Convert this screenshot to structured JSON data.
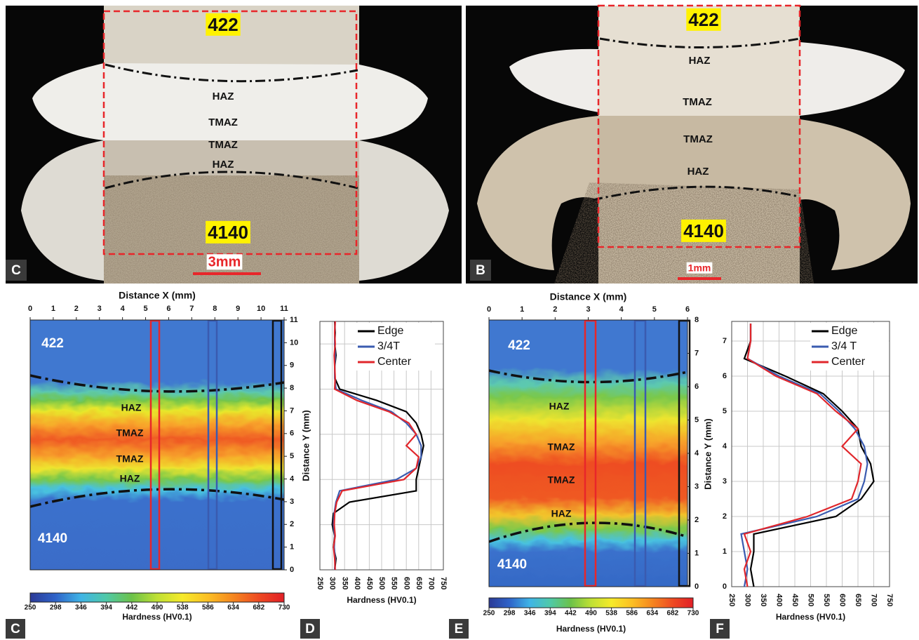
{
  "photos": [
    {
      "letter": "C",
      "labels": [
        "422",
        "HAZ",
        "TMAZ",
        "TMAZ",
        "HAZ",
        "4140"
      ],
      "scale_bar": "3mm"
    },
    {
      "letter": "B",
      "labels": [
        "422",
        "HAZ",
        "TMAZ",
        "TMAZ",
        "HAZ",
        "4140"
      ],
      "scale_bar": "1mm"
    }
  ],
  "chart_data": [
    {
      "type": "heatmap",
      "panel": "C",
      "x_label": "Distance X (mm)",
      "xlim": [
        0,
        11
      ],
      "xticks": [
        0,
        1,
        2,
        3,
        4,
        5,
        6,
        7,
        8,
        9,
        10,
        11
      ],
      "ylim": [
        0,
        11
      ],
      "yticks": [
        0,
        1,
        2,
        3,
        4,
        5,
        6,
        7,
        8,
        9,
        10,
        11
      ],
      "zone_labels": [
        "422",
        "HAZ",
        "TMAZ",
        "TMAZ",
        "HAZ",
        "4140"
      ],
      "colorbar": {
        "label": "Hardness (HV0.1)",
        "lim": [
          250,
          730
        ],
        "ticks": [
          250,
          298,
          346,
          394,
          442,
          490,
          538,
          586,
          634,
          682,
          730
        ]
      }
    },
    {
      "type": "line",
      "panel": "D",
      "x_label": "Hardness (HV0.1)",
      "y_label": "Distance Y (mm)",
      "xlim": [
        250,
        750
      ],
      "xticks": [
        250,
        300,
        350,
        400,
        450,
        500,
        550,
        600,
        650,
        700,
        750
      ],
      "ylim": [
        0,
        11
      ],
      "ygrid": [
        0,
        2,
        4,
        6,
        8,
        10
      ],
      "legend": "upper right",
      "y": [
        0,
        0.5,
        1,
        1.5,
        2,
        2.5,
        3,
        3.5,
        4,
        4.5,
        5,
        5.5,
        6,
        6.5,
        7,
        7.5,
        8,
        8.5,
        9,
        9.5,
        10,
        10.5,
        11
      ],
      "series": [
        {
          "name": "Edge",
          "color": "#000000",
          "values": [
            310,
            315,
            305,
            310,
            300,
            305,
            370,
            640,
            640,
            650,
            660,
            670,
            660,
            640,
            600,
            480,
            330,
            310,
            310,
            315,
            310,
            312,
            310
          ]
        },
        {
          "name": "3/4T",
          "color": "#3a5bb0",
          "values": [
            310,
            312,
            308,
            310,
            305,
            308,
            315,
            330,
            560,
            640,
            660,
            660,
            640,
            600,
            540,
            420,
            315,
            310,
            310,
            312,
            310,
            310,
            312
          ]
        },
        {
          "name": "Center",
          "color": "#e0262b",
          "values": [
            312,
            310,
            305,
            312,
            308,
            310,
            318,
            340,
            590,
            640,
            650,
            600,
            640,
            610,
            530,
            400,
            310,
            312,
            310,
            308,
            312,
            310,
            312
          ]
        }
      ]
    },
    {
      "type": "heatmap",
      "panel": "E",
      "x_label": "Distance X (mm)",
      "xlim": [
        0,
        6
      ],
      "xticks": [
        0,
        1,
        2,
        3,
        4,
        5,
        6
      ],
      "ylim": [
        0,
        8
      ],
      "yticks": [
        0,
        1,
        2,
        3,
        4,
        5,
        6,
        7,
        8
      ],
      "zone_labels": [
        "422",
        "HAZ",
        "TMAZ",
        "TMAZ",
        "HAZ",
        "4140"
      ],
      "colorbar": {
        "label": "Hardness (HV0.1)",
        "lim": [
          250,
          730
        ],
        "ticks": [
          250,
          298,
          346,
          394,
          442,
          490,
          538,
          586,
          634,
          682,
          730
        ]
      }
    },
    {
      "type": "line",
      "panel": "F",
      "x_label": "Hardness (HV0.1)",
      "y_label": "Distance Y (mm)",
      "xlim": [
        250,
        750
      ],
      "xticks": [
        250,
        300,
        350,
        400,
        450,
        500,
        550,
        600,
        650,
        700,
        750
      ],
      "ylim": [
        0,
        7.56
      ],
      "yticks": [
        0,
        1,
        2,
        3,
        4,
        5,
        6,
        7
      ],
      "legend": "upper right",
      "y": [
        0,
        0.5,
        1,
        1.5,
        2,
        2.5,
        3,
        3.5,
        4,
        4.5,
        5,
        5.5,
        6,
        6.5,
        7,
        7.5
      ],
      "series": [
        {
          "name": "Edge",
          "color": "#000000",
          "values": [
            320,
            310,
            320,
            320,
            580,
            660,
            700,
            690,
            660,
            650,
            600,
            540,
            420,
            290,
            310,
            310
          ]
        },
        {
          "name": "3/4 T",
          "color": "#3a5bb0",
          "values": [
            290,
            300,
            290,
            280,
            520,
            650,
            670,
            680,
            670,
            640,
            590,
            530,
            400,
            300,
            310,
            310
          ]
        },
        {
          "name": "Center",
          "color": "#e0262b",
          "values": [
            300,
            290,
            310,
            290,
            490,
            630,
            650,
            660,
            600,
            650,
            580,
            520,
            390,
            300,
            310,
            310
          ]
        }
      ]
    }
  ]
}
